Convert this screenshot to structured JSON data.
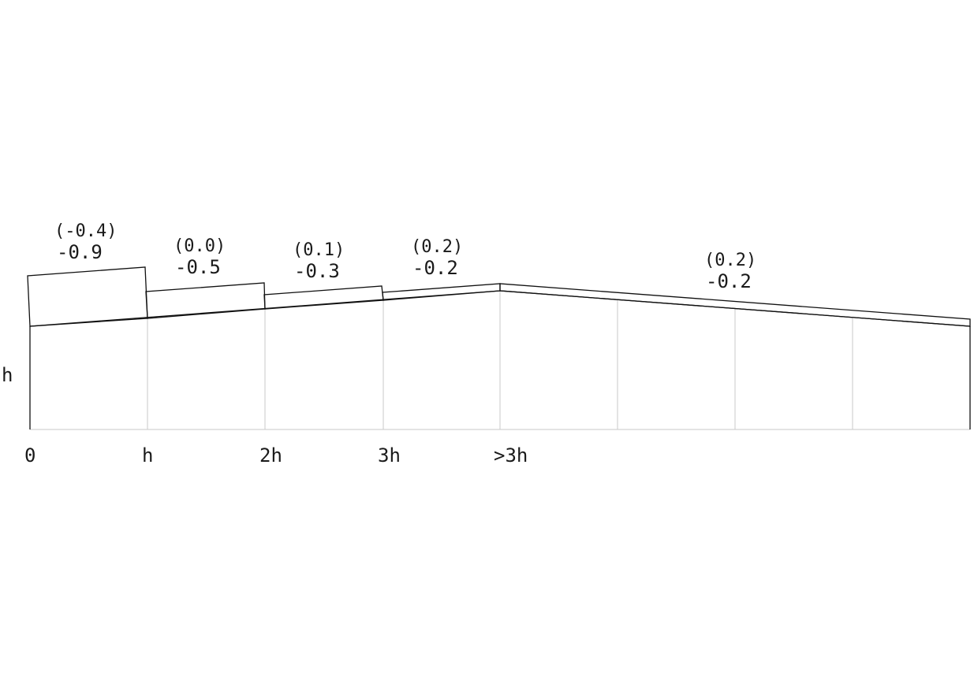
{
  "diagram": {
    "height_label": "h",
    "x_labels": [
      "0",
      "h",
      "2h",
      "3h",
      ">3h"
    ],
    "zones": [
      {
        "paren_value": "(-0.4)",
        "value": "-0.9"
      },
      {
        "paren_value": "(0.0)",
        "value": "-0.5"
      },
      {
        "paren_value": "(0.1)",
        "value": "-0.3"
      },
      {
        "paren_value": "(0.2)",
        "value": "-0.2"
      },
      {
        "paren_value": "(0.2)",
        "value": "-0.2"
      }
    ],
    "colors": {
      "outline": "#111111",
      "gridline": "#c8c8c8",
      "text": "#1a1a1a"
    }
  }
}
